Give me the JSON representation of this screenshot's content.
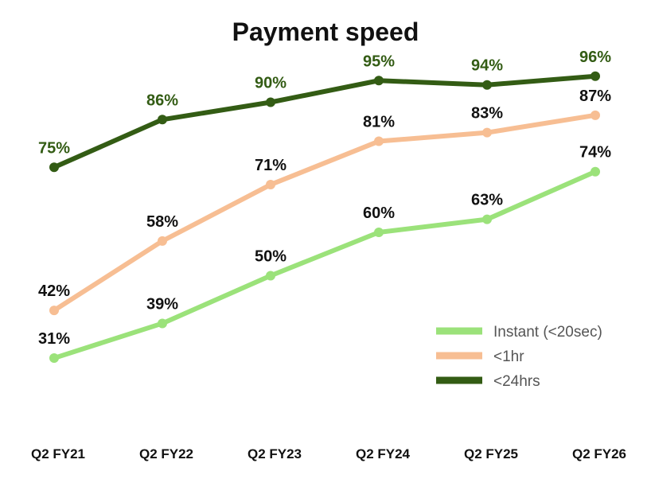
{
  "chart_data": {
    "type": "line",
    "title": "Payment speed",
    "xlabel": "",
    "ylabel": "",
    "categories": [
      "Q2 FY21",
      "Q2 FY22",
      "Q2 FY23",
      "Q2 FY24",
      "Q2 FY25",
      "Q2 FY26"
    ],
    "ylim": [
      20,
      100
    ],
    "grid": false,
    "legend": "bottom-right",
    "series": [
      {
        "name": "Instant (<20sec)",
        "color": "#9be27a",
        "label_color": "#111111",
        "values": [
          31,
          39,
          50,
          60,
          63,
          74
        ],
        "labels": [
          "31%",
          "39%",
          "50%",
          "60%",
          "63%",
          "74%"
        ]
      },
      {
        "name": "<1hr",
        "color": "#f7be93",
        "label_color": "#111111",
        "values": [
          42,
          58,
          71,
          81,
          83,
          87
        ],
        "labels": [
          "42%",
          "58%",
          "71%",
          "81%",
          "83%",
          "87%"
        ]
      },
      {
        "name": "<24hrs",
        "color": "#335c14",
        "label_color": "#335c14",
        "values": [
          75,
          86,
          90,
          95,
          94,
          96
        ],
        "labels": [
          "75%",
          "86%",
          "90%",
          "95%",
          "94%",
          "96%"
        ]
      }
    ]
  }
}
